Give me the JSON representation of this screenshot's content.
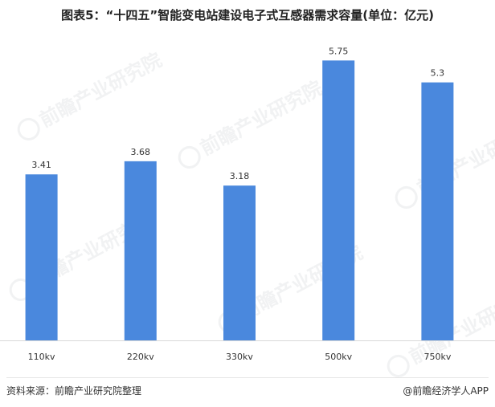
{
  "title": "图表5：“十四五”智能变电站建设电子式互感器需求容量(单位：亿元)",
  "watermark": {
    "text": "前瞻产业研究院",
    "icon": "qianzhan-logo-icon"
  },
  "chart_data": {
    "type": "bar",
    "categories": [
      "110kv",
      "220kv",
      "330kv",
      "500kv",
      "750kv"
    ],
    "values": [
      3.41,
      3.68,
      3.18,
      5.75,
      5.3
    ],
    "value_labels": [
      "3.41",
      "3.68",
      "3.18",
      "5.75",
      "5.3"
    ],
    "title": "图表5：“十四五”智能变电站建设电子式互感器需求容量(单位：亿元)",
    "xlabel": "",
    "ylabel": "",
    "ylim": [
      0,
      6.3
    ],
    "grid": false,
    "bar_color": "#4a88dd",
    "axis_color": "#d9d9d9"
  },
  "footer": {
    "source": "资料来源：前瞻产业研究院整理",
    "credit": "@前瞻经济学人APP"
  }
}
